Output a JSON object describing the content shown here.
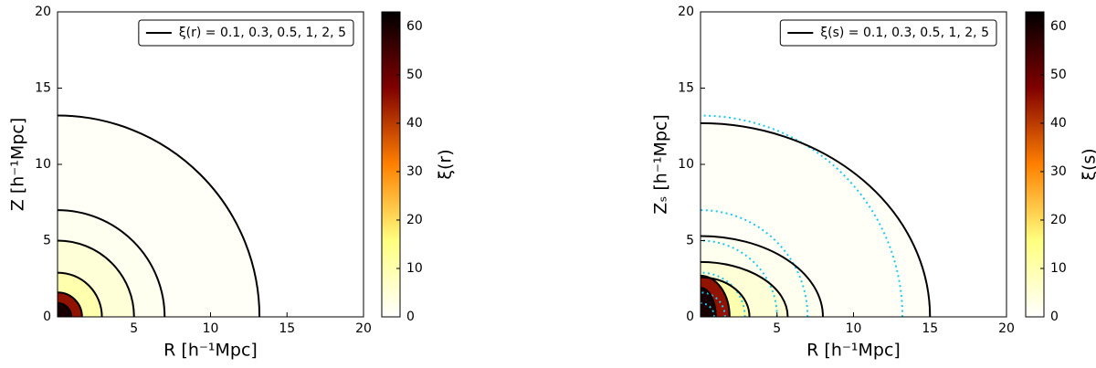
{
  "chart_data": [
    {
      "type": "contour",
      "xlabel": "R [h⁻¹Mpc]",
      "ylabel": "Z [h⁻¹Mpc]",
      "legend_label": "ξ(r) = 0.1, 0.3, 0.5, 1, 2, 5",
      "legend_loc": "upper right",
      "xlim": [
        0,
        20
      ],
      "ylim": [
        0,
        20
      ],
      "xticks": [
        5,
        10,
        15,
        20
      ],
      "yticks": [
        0,
        5,
        10,
        15,
        20
      ],
      "colorbar": {
        "label": "ξ(r)",
        "lim": [
          0,
          63
        ],
        "ticks": [
          0,
          10,
          20,
          30,
          40,
          50,
          60
        ],
        "colormap": [
          "#ffffff",
          "#ffff80",
          "#ff8000",
          "#800000",
          "#000000"
        ]
      },
      "filled": [
        {
          "value": 1,
          "r": 13.2,
          "z": 13.2
        },
        {
          "value": 2,
          "r": 7,
          "z": 7
        },
        {
          "value": 5,
          "r": 5,
          "z": 5
        },
        {
          "value": 10,
          "r": 2.9,
          "z": 2.9
        },
        {
          "value": 45,
          "r": 1.6,
          "z": 1.6
        },
        {
          "value": 60,
          "r": 0.9,
          "z": 0.9
        }
      ],
      "contours": {
        "color": "#000000",
        "lines": [
          {
            "level": 0.1,
            "r": 13.2,
            "z": 13.2
          },
          {
            "level": 0.3,
            "r": 7,
            "z": 7
          },
          {
            "level": 0.5,
            "r": 5,
            "z": 5
          },
          {
            "level": 1,
            "r": 2.9,
            "z": 2.9
          },
          {
            "level": 2,
            "r": 1.6,
            "z": 1.6
          },
          {
            "level": 5,
            "r": 0.9,
            "z": 0.9
          }
        ]
      }
    },
    {
      "type": "contour",
      "xlabel": "R [h⁻¹Mpc]",
      "ylabel": "Zₛ [h⁻¹Mpc]",
      "legend_label": "ξ(s) = 0.1, 0.3, 0.5, 1, 2, 5",
      "legend_loc": "upper right",
      "xlim": [
        0,
        20
      ],
      "ylim": [
        0,
        20
      ],
      "xticks": [
        5,
        10,
        15,
        20
      ],
      "yticks": [
        0,
        5,
        10,
        15,
        20
      ],
      "colorbar": {
        "label": "ξ(s)",
        "lim": [
          0,
          63
        ],
        "ticks": [
          0,
          10,
          20,
          30,
          40,
          50,
          60
        ],
        "colormap": [
          "#ffffff",
          "#ffff80",
          "#ff8000",
          "#800000",
          "#000000"
        ]
      },
      "filled": [
        {
          "value": 1,
          "r": 15,
          "z": 12.7
        },
        {
          "value": 2,
          "r": 8,
          "z": 5.3
        },
        {
          "value": 5,
          "r": 5.7,
          "z": 3.6
        },
        {
          "value": 10,
          "r": 3.2,
          "z": 2.6
        },
        {
          "value": 45,
          "r": 1.9,
          "z": 2.7
        },
        {
          "value": 60,
          "r": 1,
          "z": 1.9
        }
      ],
      "contours": {
        "color": "#000000",
        "lines": [
          {
            "level": 0.1,
            "r": 15,
            "z": 12.7
          },
          {
            "level": 0.3,
            "r": 8,
            "z": 5.3
          },
          {
            "level": 0.5,
            "r": 5.7,
            "z": 3.6
          },
          {
            "level": 1,
            "r": 3.2,
            "z": 2.6
          },
          {
            "level": 2,
            "r": 1.9,
            "z": 2.7
          },
          {
            "level": 5,
            "r": 1,
            "z": 1.9
          }
        ]
      },
      "reference_contours": {
        "color": "#1ec8f0",
        "style": "dotted",
        "lines": [
          {
            "level": 0.1,
            "r": 13.2,
            "z": 13.2
          },
          {
            "level": 0.3,
            "r": 7,
            "z": 7
          },
          {
            "level": 0.5,
            "r": 5,
            "z": 5
          },
          {
            "level": 1,
            "r": 2.9,
            "z": 2.9
          },
          {
            "level": 2,
            "r": 1.6,
            "z": 1.6
          },
          {
            "level": 5,
            "r": 0.9,
            "z": 0.9
          }
        ]
      }
    }
  ]
}
